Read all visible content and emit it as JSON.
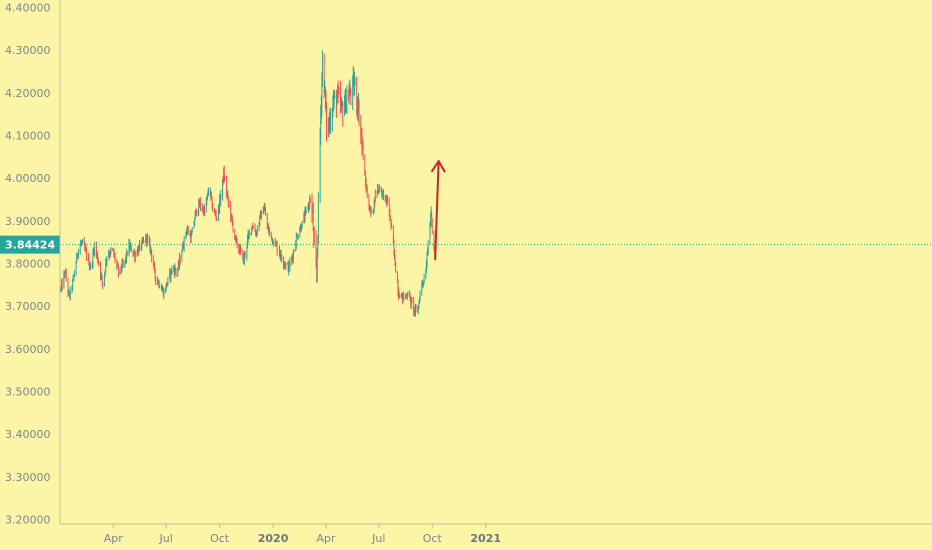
{
  "chart_data": {
    "type": "candlestick",
    "background_color": "#fdf5a6",
    "up_color": "#26a69a",
    "down_color": "#ef5350",
    "arrow_color": "#c62828",
    "price_label_color": "#26a69a",
    "ylim": [
      3.2,
      4.4
    ],
    "y_ticks": [
      4.4,
      4.3,
      4.2,
      4.1,
      4.0,
      3.9,
      3.8,
      3.7,
      3.6,
      3.5,
      3.4,
      3.3,
      3.2
    ],
    "y_tick_labels": [
      "4.40000",
      "4.30000",
      "4.20000",
      "4.10000",
      "4.00000",
      "3.90000",
      "3.80000",
      "3.70000",
      "3.60000",
      "3.50000",
      "3.40000",
      "3.30000",
      "3.20000"
    ],
    "x_ticks": [
      {
        "date": "2019-04-01",
        "label": "Apr",
        "bold": false
      },
      {
        "date": "2019-07-01",
        "label": "Jul",
        "bold": false
      },
      {
        "date": "2019-10-01",
        "label": "Oct",
        "bold": false
      },
      {
        "date": "2020-01-01",
        "label": "2020",
        "bold": true
      },
      {
        "date": "2020-04-01",
        "label": "Apr",
        "bold": false
      },
      {
        "date": "2020-07-01",
        "label": "Jul",
        "bold": false
      },
      {
        "date": "2020-10-01",
        "label": "Oct",
        "bold": false
      },
      {
        "date": "2021-01-01",
        "label": "2021",
        "bold": true
      }
    ],
    "current_price": 3.84424,
    "current_price_label": "3.84424",
    "grid": false,
    "trend_path": [
      [
        "2019-01-01",
        3.74
      ],
      [
        "2019-01-08",
        3.78
      ],
      [
        "2019-01-15",
        3.72
      ],
      [
        "2019-01-22",
        3.76
      ],
      [
        "2019-01-30",
        3.83
      ],
      [
        "2019-02-06",
        3.85
      ],
      [
        "2019-02-14",
        3.82
      ],
      [
        "2019-02-21",
        3.79
      ],
      [
        "2019-02-28",
        3.84
      ],
      [
        "2019-03-07",
        3.8
      ],
      [
        "2019-03-14",
        3.75
      ],
      [
        "2019-03-21",
        3.82
      ],
      [
        "2019-03-31",
        3.83
      ],
      [
        "2019-04-10",
        3.78
      ],
      [
        "2019-04-20",
        3.8
      ],
      [
        "2019-04-28",
        3.84
      ],
      [
        "2019-05-08",
        3.82
      ],
      [
        "2019-05-18",
        3.84
      ],
      [
        "2019-05-28",
        3.86
      ],
      [
        "2019-06-05",
        3.83
      ],
      [
        "2019-06-12",
        3.77
      ],
      [
        "2019-06-20",
        3.75
      ],
      [
        "2019-06-27",
        3.73
      ],
      [
        "2019-07-04",
        3.76
      ],
      [
        "2019-07-12",
        3.79
      ],
      [
        "2019-07-20",
        3.78
      ],
      [
        "2019-07-28",
        3.83
      ],
      [
        "2019-08-05",
        3.88
      ],
      [
        "2019-08-13",
        3.86
      ],
      [
        "2019-08-21",
        3.92
      ],
      [
        "2019-08-28",
        3.94
      ],
      [
        "2019-09-05",
        3.92
      ],
      [
        "2019-09-13",
        3.98
      ],
      [
        "2019-09-20",
        3.92
      ],
      [
        "2019-09-27",
        3.91
      ],
      [
        "2019-10-03",
        3.96
      ],
      [
        "2019-10-08",
        4.01
      ],
      [
        "2019-10-15",
        3.95
      ],
      [
        "2019-10-22",
        3.9
      ],
      [
        "2019-10-29",
        3.85
      ],
      [
        "2019-11-05",
        3.83
      ],
      [
        "2019-11-12",
        3.81
      ],
      [
        "2019-11-19",
        3.86
      ],
      [
        "2019-11-26",
        3.89
      ],
      [
        "2019-12-03",
        3.87
      ],
      [
        "2019-12-10",
        3.91
      ],
      [
        "2019-12-17",
        3.93
      ],
      [
        "2019-12-23",
        3.88
      ],
      [
        "2019-12-30",
        3.86
      ],
      [
        "2020-01-07",
        3.84
      ],
      [
        "2020-01-14",
        3.82
      ],
      [
        "2020-01-21",
        3.8
      ],
      [
        "2020-01-28",
        3.79
      ],
      [
        "2020-02-04",
        3.82
      ],
      [
        "2020-02-10",
        3.86
      ],
      [
        "2020-02-16",
        3.88
      ],
      [
        "2020-02-22",
        3.9
      ],
      [
        "2020-02-29",
        3.93
      ],
      [
        "2020-03-05",
        3.95
      ],
      [
        "2020-03-09",
        3.91
      ],
      [
        "2020-03-13",
        3.8
      ],
      [
        "2020-03-16",
        3.77
      ],
      [
        "2020-03-19",
        3.94
      ],
      [
        "2020-03-23",
        4.15
      ],
      [
        "2020-03-26",
        4.28
      ],
      [
        "2020-03-30",
        4.2
      ],
      [
        "2020-04-03",
        4.1
      ],
      [
        "2020-04-08",
        4.14
      ],
      [
        "2020-04-14",
        4.18
      ],
      [
        "2020-04-21",
        4.19
      ],
      [
        "2020-04-28",
        4.16
      ],
      [
        "2020-05-06",
        4.18
      ],
      [
        "2020-05-13",
        4.2
      ],
      [
        "2020-05-20",
        4.22
      ],
      [
        "2020-05-26",
        4.17
      ],
      [
        "2020-06-01",
        4.1
      ],
      [
        "2020-06-07",
        4.0
      ],
      [
        "2020-06-13",
        3.94
      ],
      [
        "2020-06-19",
        3.91
      ],
      [
        "2020-06-25",
        3.96
      ],
      [
        "2020-07-01",
        3.98
      ],
      [
        "2020-07-09",
        3.96
      ],
      [
        "2020-07-17",
        3.94
      ],
      [
        "2020-07-23",
        3.88
      ],
      [
        "2020-07-29",
        3.8
      ],
      [
        "2020-08-04",
        3.73
      ],
      [
        "2020-08-12",
        3.72
      ],
      [
        "2020-08-20",
        3.73
      ],
      [
        "2020-08-28",
        3.7
      ],
      [
        "2020-09-05",
        3.68
      ],
      [
        "2020-09-12",
        3.75
      ],
      [
        "2020-09-19",
        3.77
      ],
      [
        "2020-09-25",
        3.87
      ],
      [
        "2020-09-29",
        3.92
      ],
      [
        "2020-10-02",
        3.85
      ],
      [
        "2020-10-05",
        3.83
      ]
    ],
    "annotation_arrow": {
      "from": [
        "2020-10-06",
        3.81
      ],
      "to": [
        "2020-10-12",
        4.04
      ]
    }
  }
}
